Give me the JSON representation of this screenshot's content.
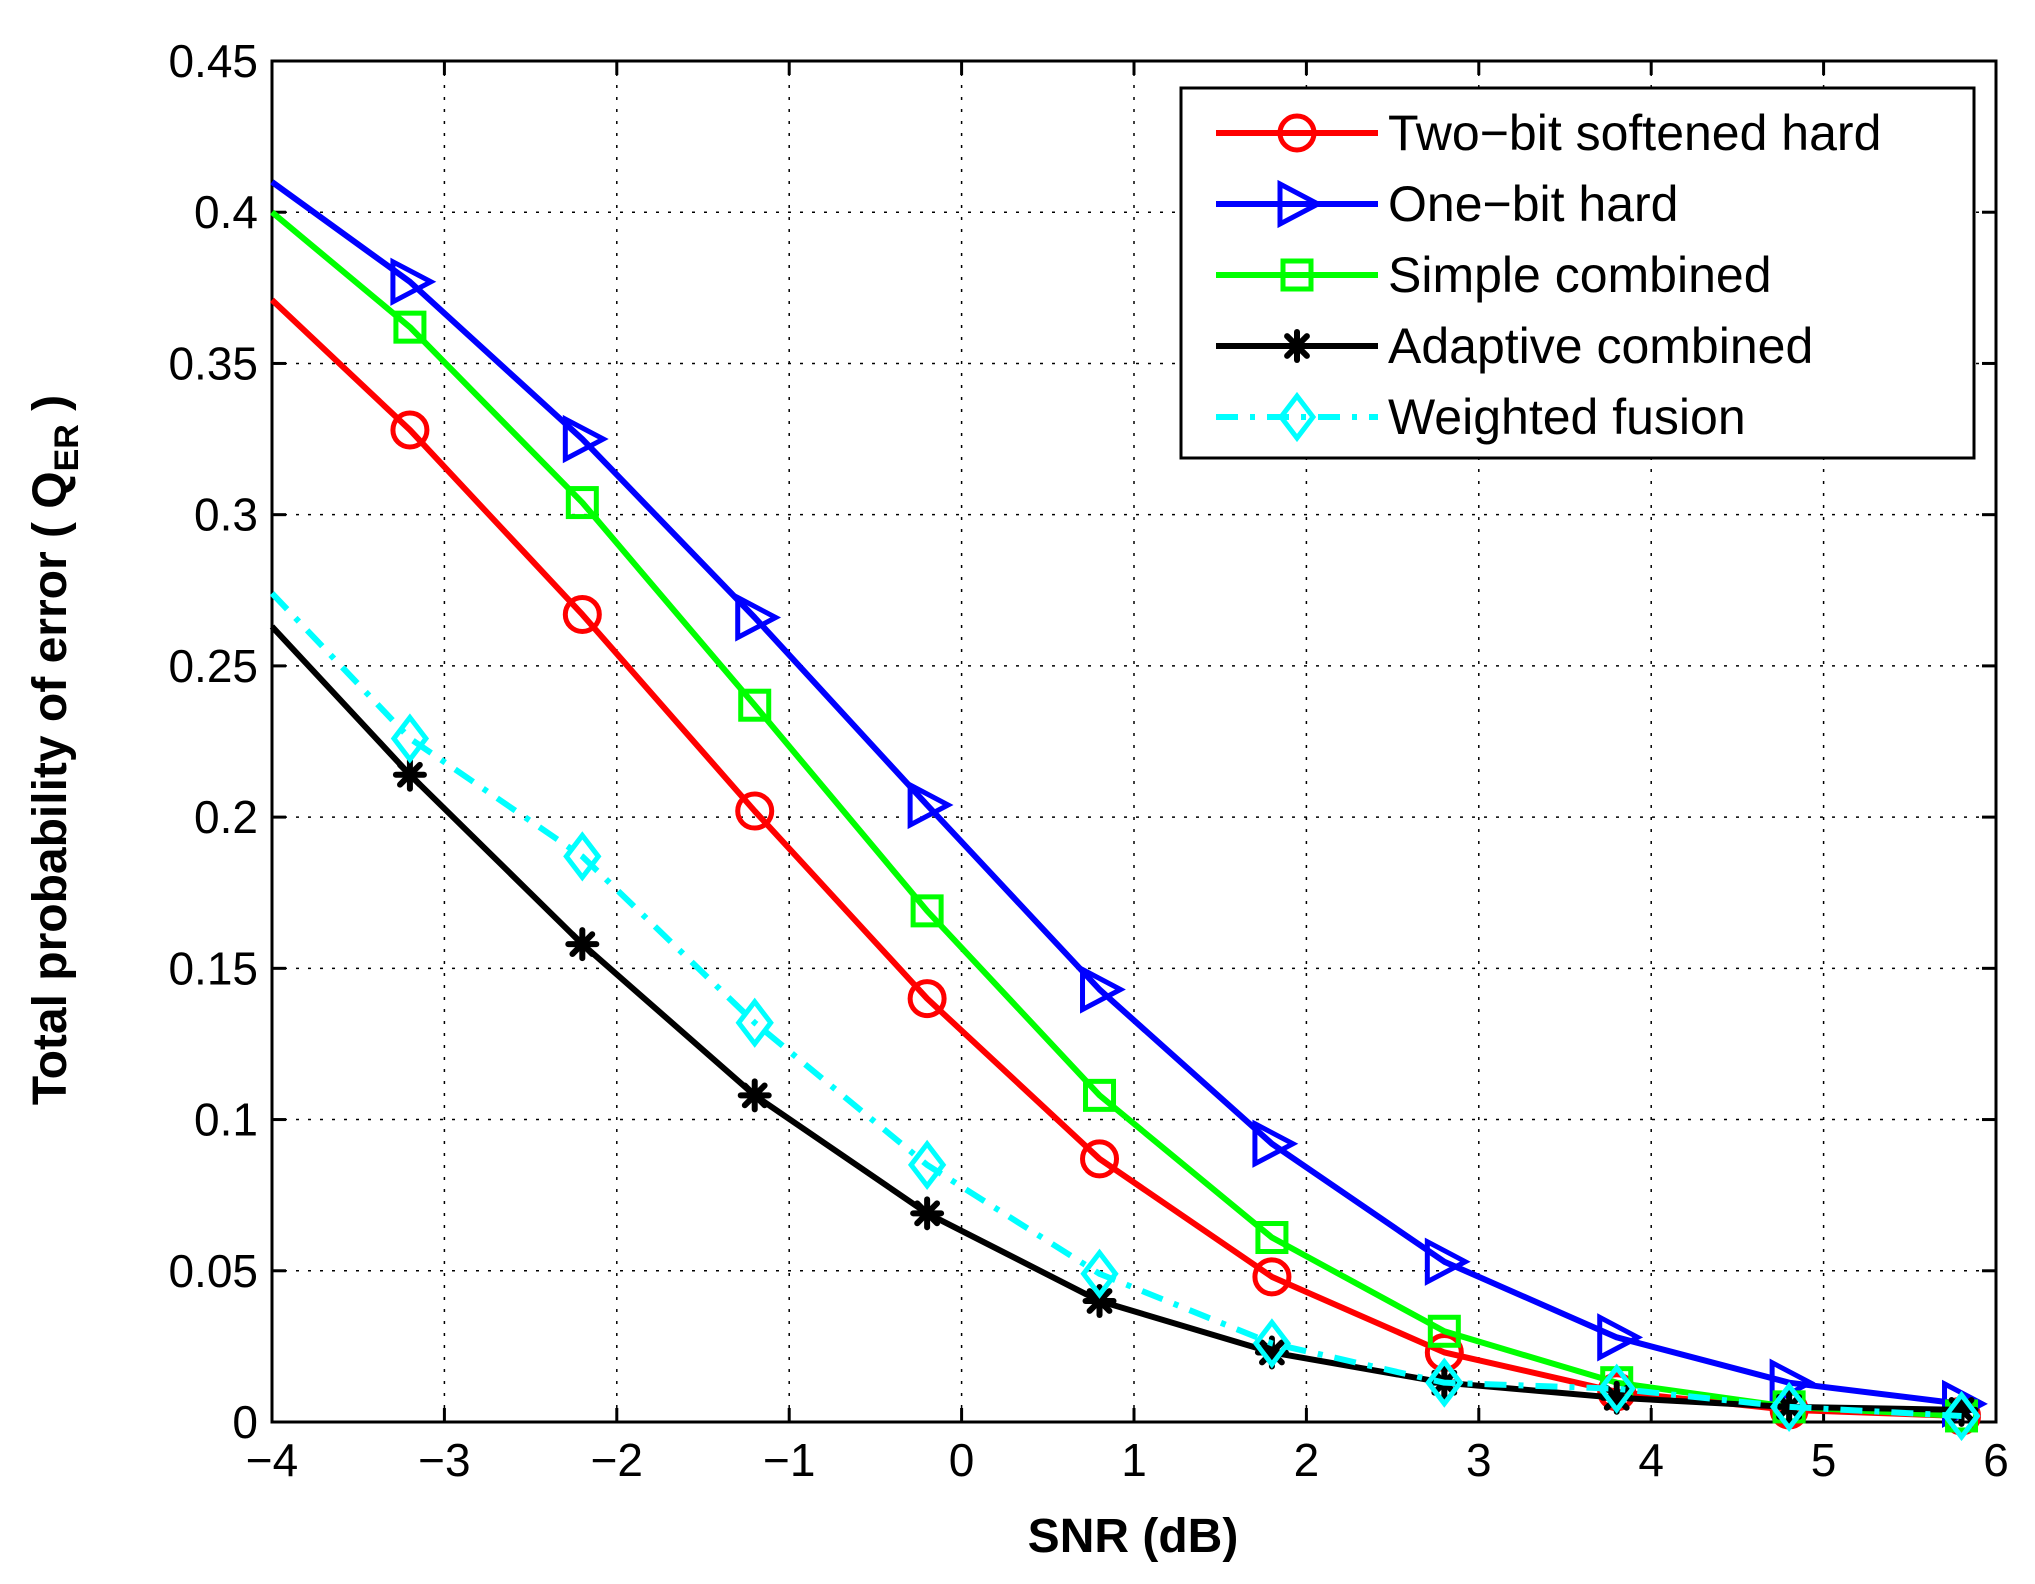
{
  "chart_data": {
    "type": "line",
    "title": "",
    "xlabel": "SNR (dB)",
    "ylabel": "Total probability of error ( Q",
    "ylabel_subscript": "ER",
    "ylabel_suffix": " )",
    "xlim": [
      -4,
      6
    ],
    "ylim": [
      0,
      0.45
    ],
    "grid": true,
    "legend_position": "top-right",
    "xticks": [
      -4,
      -3,
      -2,
      -1,
      0,
      1,
      2,
      3,
      4,
      5,
      6
    ],
    "xtick_labels": [
      "−4",
      "−3",
      "−2",
      "−1",
      "0",
      "1",
      "2",
      "3",
      "4",
      "5",
      "6"
    ],
    "yticks": [
      0,
      0.05,
      0.1,
      0.15,
      0.2,
      0.25,
      0.3,
      0.35,
      0.4,
      0.45
    ],
    "ytick_labels": [
      "0",
      "0.05",
      "0.1",
      "0.15",
      "0.2",
      "0.25",
      "0.3",
      "0.35",
      "0.4",
      "0.45"
    ],
    "series": [
      {
        "name": "Two−bit softened hard",
        "color": "#ff0000",
        "marker": "circle",
        "dash": "solid",
        "x": [
          -4,
          -3.2,
          -2.2,
          -1.2,
          -0.2,
          0.8,
          1.8,
          2.8,
          3.8,
          4.8,
          5.8
        ],
        "y": [
          0.371,
          0.328,
          0.267,
          0.202,
          0.14,
          0.087,
          0.048,
          0.023,
          0.01,
          0.004,
          0.002
        ]
      },
      {
        "name": "One−bit hard",
        "color": "#0000ff",
        "marker": "triangle-right",
        "dash": "solid",
        "x": [
          -4,
          -3.2,
          -2.2,
          -1.2,
          -0.2,
          0.8,
          1.8,
          2.8,
          3.8,
          4.8,
          5.8
        ],
        "y": [
          0.41,
          0.377,
          0.325,
          0.266,
          0.204,
          0.143,
          0.092,
          0.053,
          0.028,
          0.013,
          0.006
        ]
      },
      {
        "name": "Simple combined",
        "color": "#00ff00",
        "marker": "square",
        "dash": "solid",
        "x": [
          -4,
          -3.2,
          -2.2,
          -1.2,
          -0.2,
          0.8,
          1.8,
          2.8,
          3.8,
          4.8,
          5.8
        ],
        "y": [
          0.4,
          0.362,
          0.304,
          0.237,
          0.169,
          0.108,
          0.061,
          0.03,
          0.013,
          0.005,
          0.002
        ]
      },
      {
        "name": "Adaptive combined",
        "color": "#000000",
        "marker": "asterisk",
        "dash": "solid",
        "x": [
          -4,
          -3.2,
          -2.2,
          -1.2,
          -0.2,
          0.8,
          1.8,
          2.8,
          3.8,
          4.8,
          5.8
        ],
        "y": [
          0.263,
          0.214,
          0.158,
          0.108,
          0.069,
          0.04,
          0.023,
          0.013,
          0.008,
          0.005,
          0.004
        ]
      },
      {
        "name": "Weighted fusion",
        "color": "#00ffff",
        "marker": "diamond",
        "dash": "dashdot",
        "x": [
          -4,
          -3.2,
          -2.2,
          -1.2,
          -0.2,
          0.8,
          1.8,
          2.8,
          3.8,
          4.8,
          5.8
        ],
        "y": [
          0.274,
          0.226,
          0.187,
          0.132,
          0.085,
          0.049,
          0.026,
          0.013,
          0.011,
          0.005,
          0.002
        ]
      }
    ]
  }
}
